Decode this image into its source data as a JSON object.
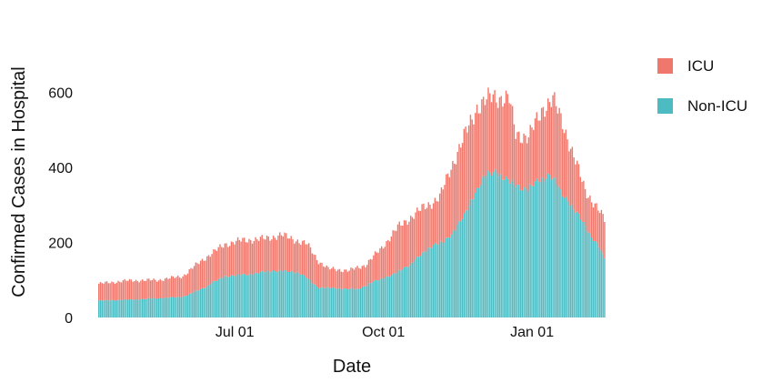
{
  "chart_data": {
    "type": "bar",
    "stacked": true,
    "title": "",
    "xlabel": "Date",
    "ylabel": "Confirmed Cases in Hospital",
    "x_start": "2020-04-08",
    "x_end": "2021-02-15",
    "x_ticks": [
      {
        "date": "2020-07-01",
        "label": "Jul 01"
      },
      {
        "date": "2020-10-01",
        "label": "Oct 01"
      },
      {
        "date": "2021-01-01",
        "label": "Jan 01"
      }
    ],
    "ylim": [
      0,
      700
    ],
    "y_ticks": [
      0,
      200,
      400,
      600
    ],
    "grid": false,
    "legend_position": "right",
    "series_order": [
      "Non-ICU",
      "ICU"
    ],
    "series": [
      {
        "name": "ICU",
        "color": "#F0776B",
        "total_profile": [
          [
            "2020-04-08",
            90
          ],
          [
            "2020-04-25",
            98
          ],
          [
            "2020-05-15",
            100
          ],
          [
            "2020-05-30",
            110
          ],
          [
            "2020-06-10",
            150
          ],
          [
            "2020-06-25",
            195
          ],
          [
            "2020-07-05",
            205
          ],
          [
            "2020-07-20",
            210
          ],
          [
            "2020-07-30",
            220
          ],
          [
            "2020-08-15",
            195
          ],
          [
            "2020-08-22",
            150
          ],
          [
            "2020-08-28",
            130
          ],
          [
            "2020-09-10",
            125
          ],
          [
            "2020-09-20",
            140
          ],
          [
            "2020-09-30",
            185
          ],
          [
            "2020-10-10",
            240
          ],
          [
            "2020-10-25",
            290
          ],
          [
            "2020-11-05",
            320
          ],
          [
            "2020-11-12",
            400
          ],
          [
            "2020-11-20",
            480
          ],
          [
            "2020-11-28",
            560
          ],
          [
            "2020-12-08",
            590
          ],
          [
            "2020-12-18",
            580
          ],
          [
            "2020-12-22",
            490
          ],
          [
            "2020-12-30",
            480
          ],
          [
            "2021-01-08",
            560
          ],
          [
            "2021-01-14",
            580
          ],
          [
            "2021-01-20",
            520
          ],
          [
            "2021-01-26",
            440
          ],
          [
            "2021-02-03",
            340
          ],
          [
            "2021-02-15",
            260
          ]
        ]
      },
      {
        "name": "Non-ICU",
        "color": "#4DBBC2",
        "profile": [
          [
            "2020-04-08",
            45
          ],
          [
            "2020-05-01",
            48
          ],
          [
            "2020-05-30",
            55
          ],
          [
            "2020-06-10",
            75
          ],
          [
            "2020-06-25",
            110
          ],
          [
            "2020-07-10",
            115
          ],
          [
            "2020-07-25",
            125
          ],
          [
            "2020-08-10",
            120
          ],
          [
            "2020-08-22",
            80
          ],
          [
            "2020-09-15",
            75
          ],
          [
            "2020-09-25",
            95
          ],
          [
            "2020-10-10",
            120
          ],
          [
            "2020-10-20",
            150
          ],
          [
            "2020-11-01",
            195
          ],
          [
            "2020-11-08",
            200
          ],
          [
            "2020-11-20",
            270
          ],
          [
            "2020-12-01",
            370
          ],
          [
            "2020-12-10",
            390
          ],
          [
            "2020-12-18",
            360
          ],
          [
            "2020-12-30",
            340
          ],
          [
            "2021-01-05",
            365
          ],
          [
            "2021-01-12",
            380
          ],
          [
            "2021-01-20",
            330
          ],
          [
            "2021-01-26",
            295
          ],
          [
            "2021-02-05",
            230
          ],
          [
            "2021-02-15",
            160
          ]
        ]
      }
    ]
  }
}
